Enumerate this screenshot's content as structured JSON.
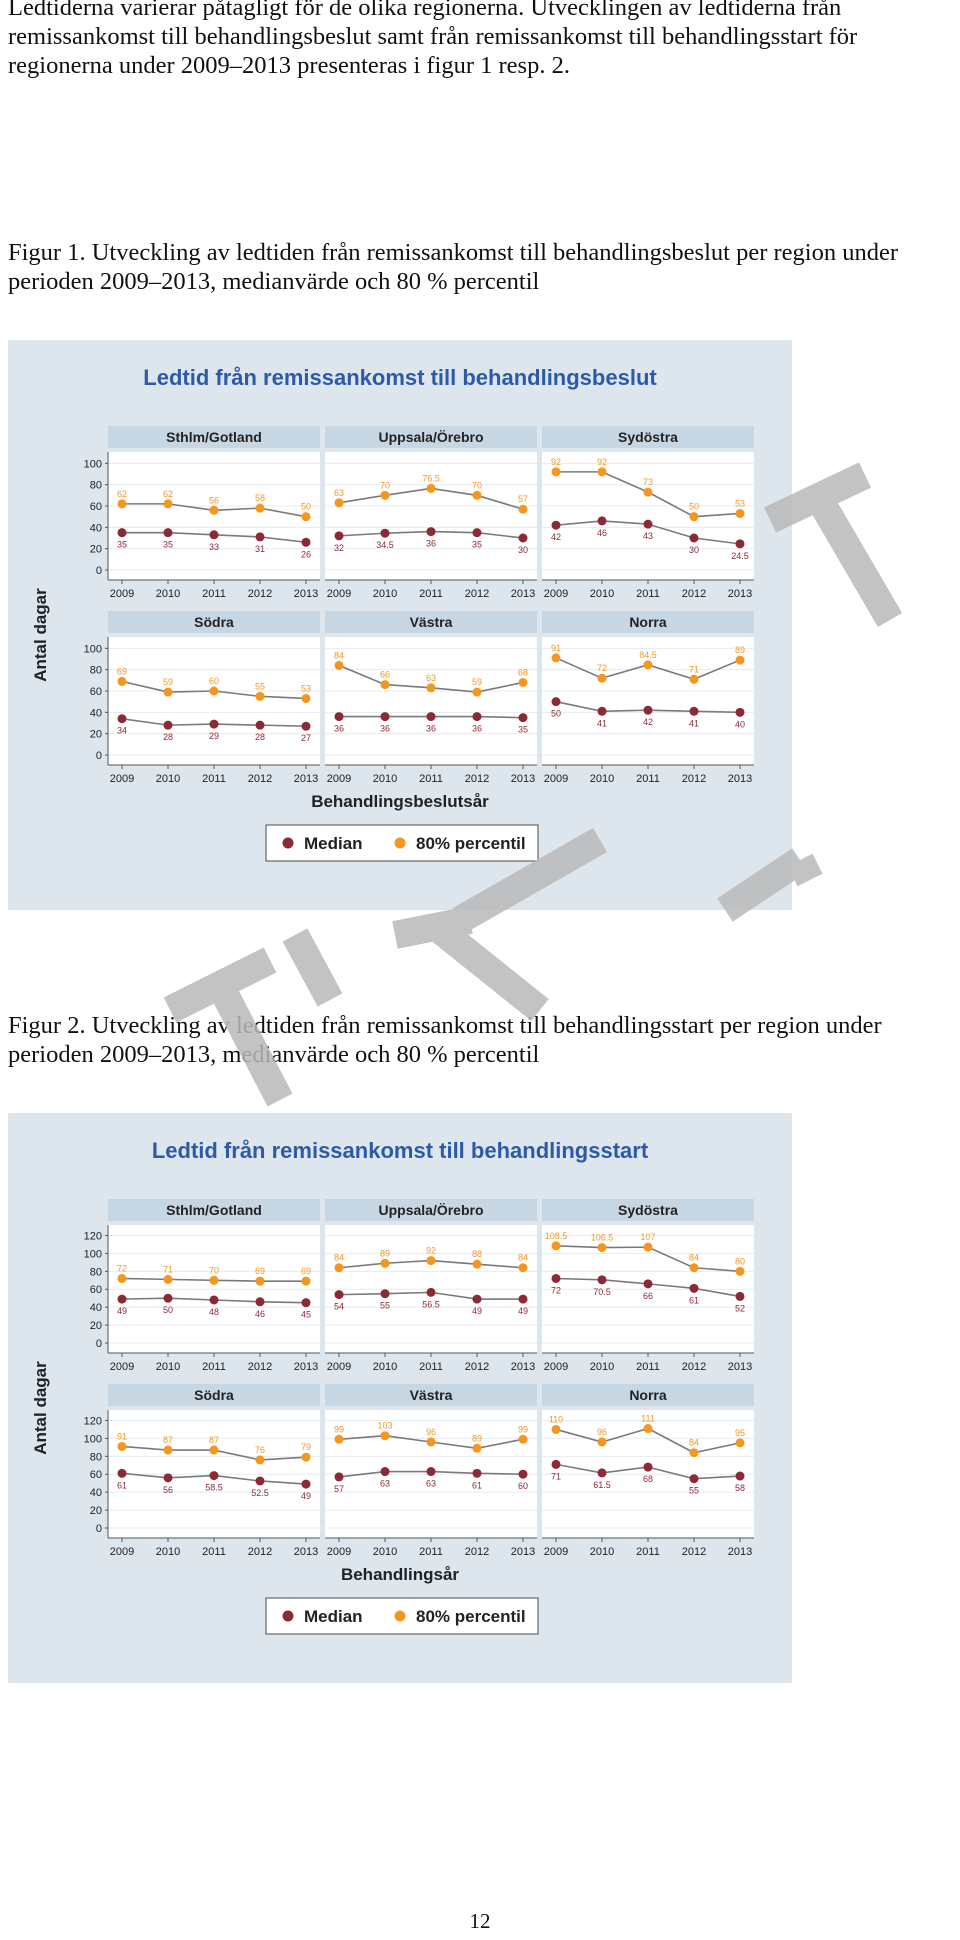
{
  "body": {
    "intro": "Ledtiderna varierar påtagligt för de olika regionerna. Utvecklingen av ledtiderna från remissankomst till behandlingsbeslut samt från remissankomst till behandlingsstart för regionerna under 2009–2013 presenteras i figur 1 resp. 2.",
    "fig1_caption": "Figur 1. Utveckling av ledtiden från remissankomst till behandlingsbeslut per region under perioden 2009–2013, medianvärde och 80 % percentil",
    "fig2_caption": "Figur 2. Utveckling av ledtiden från remissankomst till behandlingsstart per region under perioden 2009–2013, medianvärde och 80 % percentil",
    "page_number": "12"
  },
  "colors": {
    "median": "#8b2a35",
    "percentile": "#f5961f",
    "title": "#2d5aa8",
    "panel_header": "#c7d6e3",
    "figure_bg": "#dde6ed",
    "plot_bg": "#ffffff",
    "watermark": "#b9b9b9"
  },
  "chart_data": [
    {
      "type": "line",
      "title": "Ledtid från remissankomst till behandlingsbeslut",
      "ylabel": "Antal dagar",
      "xlabel": "Behandlingsbeslutsår",
      "x": [
        "2009",
        "2010",
        "2011",
        "2012",
        "2013"
      ],
      "yticks": [
        0,
        20,
        40,
        60,
        80,
        100
      ],
      "ylim": [
        0,
        105
      ],
      "legend": [
        "Median",
        "80% percentil"
      ],
      "legend_position": "bottom",
      "panels": [
        {
          "name": "Sthlm/Gotland",
          "series": [
            {
              "name": "Median",
              "values": [
                35,
                35,
                33,
                31,
                26
              ]
            },
            {
              "name": "80% percentil",
              "values": [
                62,
                62,
                56,
                58,
                50
              ]
            }
          ]
        },
        {
          "name": "Uppsala/Örebro",
          "series": [
            {
              "name": "Median",
              "values": [
                32,
                34.5,
                36,
                35,
                30
              ]
            },
            {
              "name": "80% percentil",
              "values": [
                63,
                70,
                76.5,
                70,
                57
              ]
            }
          ]
        },
        {
          "name": "Sydöstra",
          "series": [
            {
              "name": "Median",
              "values": [
                42,
                46,
                43,
                30,
                24.5
              ]
            },
            {
              "name": "80% percentil",
              "values": [
                92,
                92,
                73,
                50,
                53
              ]
            }
          ]
        },
        {
          "name": "Södra",
          "series": [
            {
              "name": "Median",
              "values": [
                34,
                28,
                29,
                28,
                27
              ]
            },
            {
              "name": "80% percentil",
              "values": [
                69,
                59,
                60,
                55,
                53
              ]
            }
          ]
        },
        {
          "name": "Västra",
          "series": [
            {
              "name": "Median",
              "values": [
                36,
                36,
                36,
                36,
                35
              ]
            },
            {
              "name": "80% percentil",
              "values": [
                84,
                66,
                63,
                59,
                68
              ]
            }
          ]
        },
        {
          "name": "Norra",
          "series": [
            {
              "name": "Median",
              "values": [
                50,
                41,
                42,
                41,
                40
              ]
            },
            {
              "name": "80% percentil",
              "values": [
                91,
                72,
                84.5,
                71,
                89
              ]
            }
          ]
        }
      ]
    },
    {
      "type": "line",
      "title": "Ledtid från remissankomst till behandlingsstart",
      "ylabel": "Antal dagar",
      "xlabel": "Behandlingsår",
      "x": [
        "2009",
        "2010",
        "2011",
        "2012",
        "2013"
      ],
      "yticks": [
        0,
        20,
        40,
        60,
        80,
        100,
        120
      ],
      "ylim": [
        0,
        125
      ],
      "legend": [
        "Median",
        "80% percentil"
      ],
      "legend_position": "bottom",
      "panels": [
        {
          "name": "Sthlm/Gotland",
          "series": [
            {
              "name": "Median",
              "values": [
                49,
                50,
                48,
                46,
                45
              ]
            },
            {
              "name": "80% percentil",
              "values": [
                72,
                71,
                70,
                69,
                69
              ]
            }
          ]
        },
        {
          "name": "Uppsala/Örebro",
          "series": [
            {
              "name": "Median",
              "values": [
                54,
                55,
                56.5,
                49,
                49
              ]
            },
            {
              "name": "80% percentil",
              "values": [
                84,
                89,
                92,
                88,
                84
              ]
            }
          ]
        },
        {
          "name": "Sydöstra",
          "series": [
            {
              "name": "Median",
              "values": [
                72,
                70.5,
                66,
                61,
                52
              ]
            },
            {
              "name": "80% percentil",
              "values": [
                108.5,
                106.5,
                107,
                84,
                80
              ]
            }
          ]
        },
        {
          "name": "Södra",
          "series": [
            {
              "name": "Median",
              "values": [
                61,
                56,
                58.5,
                52.5,
                49
              ]
            },
            {
              "name": "80% percentil",
              "values": [
                91,
                87,
                87,
                76,
                79
              ]
            }
          ]
        },
        {
          "name": "Västra",
          "series": [
            {
              "name": "Median",
              "values": [
                57,
                63,
                63,
                61,
                60
              ]
            },
            {
              "name": "80% percentil",
              "values": [
                99,
                103,
                96,
                89,
                99
              ]
            }
          ]
        },
        {
          "name": "Norra",
          "series": [
            {
              "name": "Median",
              "values": [
                71,
                61.5,
                68,
                55,
                58
              ]
            },
            {
              "name": "80% percentil",
              "values": [
                110,
                96,
                111,
                84,
                95
              ]
            }
          ]
        }
      ]
    }
  ]
}
